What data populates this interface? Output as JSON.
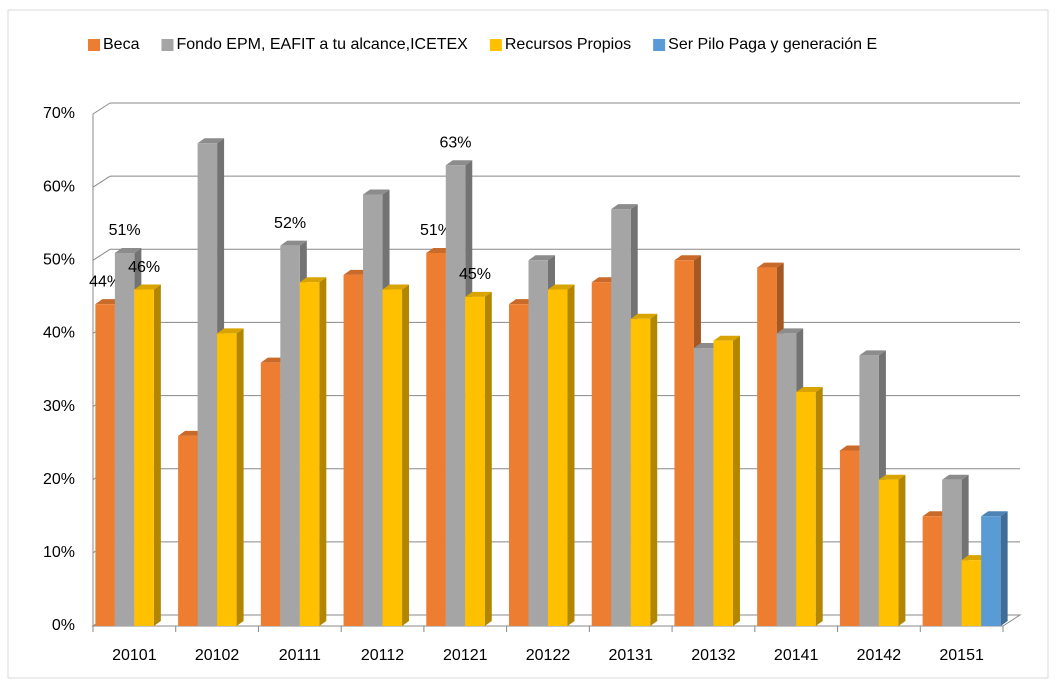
{
  "chart_data": {
    "type": "bar",
    "categories": [
      "20101",
      "20102",
      "20111",
      "20112",
      "20121",
      "20122",
      "20131",
      "20132",
      "20141",
      "20142",
      "20151"
    ],
    "series": [
      {
        "name": "Beca",
        "color": "#ED7D31",
        "values": [
          44,
          26,
          36,
          48,
          51,
          44,
          47,
          50,
          49,
          24,
          15
        ],
        "value_labels": [
          "44%",
          null,
          null,
          null,
          "51%",
          null,
          null,
          null,
          null,
          null,
          null
        ]
      },
      {
        "name": "Fondo EPM, EAFIT a tu alcance,ICETEX",
        "color": "#A5A5A5",
        "values": [
          51,
          66,
          52,
          59,
          63,
          50,
          57,
          38,
          40,
          37,
          20
        ],
        "value_labels": [
          "51%",
          null,
          "52%",
          null,
          "63%",
          null,
          null,
          null,
          null,
          null,
          null
        ]
      },
      {
        "name": "Recursos Propios",
        "color": "#FFC000",
        "values": [
          46,
          40,
          47,
          46,
          45,
          46,
          42,
          39,
          32,
          20,
          9
        ],
        "value_labels": [
          "46%",
          null,
          null,
          null,
          "45%",
          null,
          null,
          null,
          null,
          null,
          null
        ]
      },
      {
        "name": "Ser Pilo Paga y generación E",
        "color": "#5B9BD5",
        "values": [
          null,
          null,
          null,
          null,
          null,
          null,
          null,
          null,
          null,
          null,
          15
        ]
      }
    ],
    "ylim": [
      0,
      70
    ],
    "yticks": [
      {
        "value": 0,
        "label": "0%"
      },
      {
        "value": 10,
        "label": "10%"
      },
      {
        "value": 20,
        "label": "20%"
      },
      {
        "value": 30,
        "label": "30%"
      },
      {
        "value": 40,
        "label": "40%"
      },
      {
        "value": 50,
        "label": "50%"
      },
      {
        "value": 60,
        "label": "60%"
      },
      {
        "value": 70,
        "label": "70%"
      }
    ],
    "grid": true,
    "legend": "top"
  }
}
